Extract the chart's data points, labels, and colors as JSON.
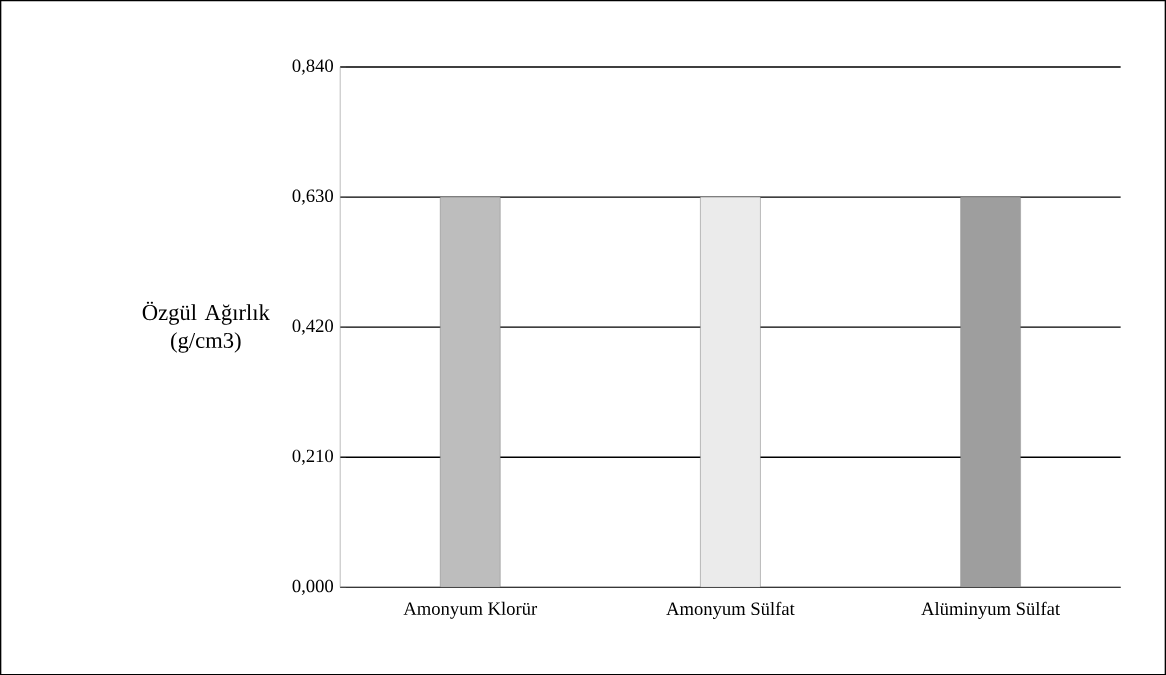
{
  "chart_data": {
    "type": "bar",
    "ylabel": "Özgül Ağırlık (g/cm3)",
    "categories": [
      "Amonyum Klorür",
      "Amonyum Sülfat",
      "Alüminyum Sülfat"
    ],
    "values": [
      0.63,
      0.63,
      0.63
    ],
    "colors": [
      "#bdbdbd",
      "#ebebeb",
      "#9e9e9e"
    ],
    "ylim": [
      0,
      0.84
    ],
    "yticks": [
      {
        "value": 0,
        "label": "0,000"
      },
      {
        "value": 0.21,
        "label": "0,210"
      },
      {
        "value": 0.42,
        "label": "0,420"
      },
      {
        "value": 0.63,
        "label": "0,630"
      },
      {
        "value": 0.84,
        "label": "0,840"
      }
    ],
    "grid": "y"
  }
}
